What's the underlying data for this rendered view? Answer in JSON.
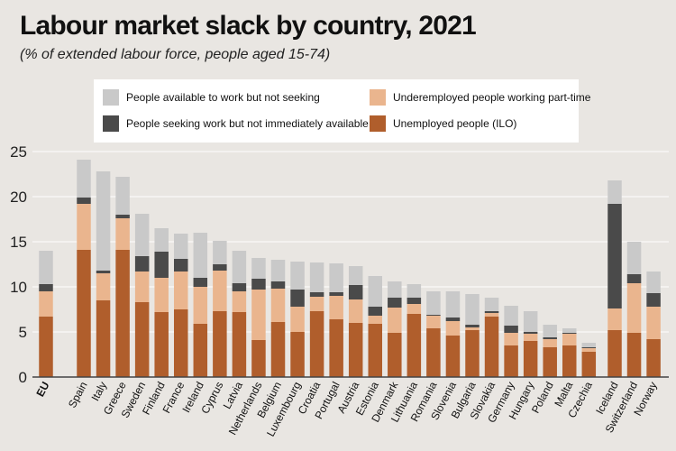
{
  "title": "Labour market slack by country, 2021",
  "subtitle": "(% of extended labour force, people aged 15-74)",
  "colors": {
    "available_not_seeking": "#c9c9c9",
    "seeking_not_available": "#4a4a4a",
    "underemployed_part_time": "#eab58e",
    "unemployed": "#b05e2c",
    "axis": "#444444",
    "grid": "#ffffff"
  },
  "chart_data": {
    "type": "bar",
    "stacked": true,
    "title": "Labour market slack by country, 2021",
    "subtitle": "(% of extended labour force, people aged 15-74)",
    "ylim": [
      0,
      25
    ],
    "yticks": [
      0,
      5,
      10,
      15,
      20,
      25
    ],
    "grid": true,
    "legend_position": "top",
    "categories": [
      "EU",
      "Spain",
      "Italy",
      "Greece",
      "Sweden",
      "Finland",
      "France",
      "Ireland",
      "Cyprus",
      "Latvia",
      "Netherlands",
      "Belgium",
      "Luxembourg",
      "Croatia",
      "Portugal",
      "Austria",
      "Estonia",
      "Denmark",
      "Lithuania",
      "Romania",
      "Slovenia",
      "Bulgaria",
      "Slovakia",
      "Germany",
      "Hungary",
      "Poland",
      "Malta",
      "Czechia",
      "Iceland",
      "Switzerland",
      "Norway"
    ],
    "bold_categories": [
      "EU"
    ],
    "category_groups": [
      1,
      27,
      3
    ],
    "series": [
      {
        "name": "Unemployed people (ILO)",
        "color": "#b05e2c",
        "values": [
          6.7,
          14.1,
          8.5,
          14.1,
          8.3,
          7.2,
          7.5,
          5.9,
          7.3,
          7.2,
          4.1,
          6.1,
          5.0,
          7.3,
          6.4,
          6.0,
          5.9,
          4.9,
          7.0,
          5.4,
          4.6,
          5.2,
          6.7,
          3.5,
          4.0,
          3.3,
          3.5,
          2.8,
          5.2,
          4.9,
          4.2
        ]
      },
      {
        "name": "Underemployed people working part-time",
        "color": "#eab58e",
        "values": [
          2.8,
          5.1,
          3.0,
          3.5,
          3.4,
          3.8,
          4.2,
          4.1,
          4.5,
          2.3,
          5.6,
          3.7,
          2.8,
          1.6,
          2.6,
          2.6,
          0.9,
          2.8,
          1.1,
          1.4,
          1.6,
          0.3,
          0.4,
          1.4,
          0.8,
          0.9,
          1.3,
          0.4,
          2.4,
          5.5,
          3.6
        ]
      },
      {
        "name": "People seeking work but not immediately available",
        "color": "#4a4a4a",
        "values": [
          0.8,
          0.7,
          0.3,
          0.4,
          1.7,
          2.9,
          1.4,
          1.0,
          0.7,
          0.9,
          1.2,
          0.8,
          1.9,
          0.5,
          0.4,
          1.6,
          1.0,
          1.1,
          0.7,
          0.1,
          0.4,
          0.3,
          0.2,
          0.8,
          0.2,
          0.2,
          0.1,
          0.1,
          11.6,
          1.0,
          1.5
        ]
      },
      {
        "name": "People available to work but not seeking",
        "color": "#c9c9c9",
        "values": [
          3.7,
          4.2,
          11.0,
          4.2,
          4.7,
          2.6,
          2.8,
          5.0,
          2.6,
          3.6,
          2.3,
          2.4,
          3.1,
          3.3,
          3.2,
          2.1,
          3.4,
          1.8,
          1.5,
          2.6,
          2.9,
          3.4,
          1.5,
          2.2,
          2.3,
          1.4,
          0.5,
          0.5,
          2.6,
          3.6,
          2.4
        ]
      }
    ]
  },
  "legend": [
    {
      "label": "People available to work but not seeking",
      "color": "#c9c9c9"
    },
    {
      "label": "People seeking work but not immediately available",
      "color": "#4a4a4a"
    },
    {
      "label": "Underemployed people working part-time",
      "color": "#eab58e"
    },
    {
      "label": "Unemployed people (ILO)",
      "color": "#b05e2c"
    }
  ]
}
